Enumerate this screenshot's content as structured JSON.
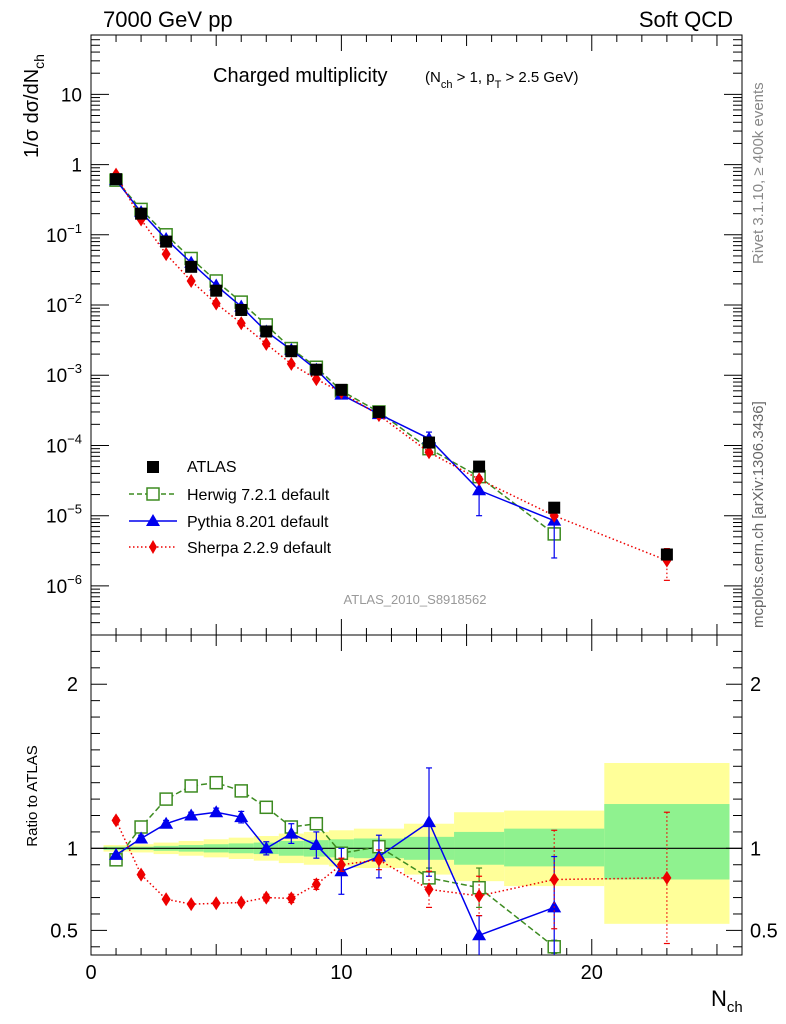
{
  "header": {
    "left": "7000 GeV pp",
    "right": "Soft QCD"
  },
  "side_labels": {
    "rivet": "Rivet 3.1.10, ≥ 400k events",
    "source": "mcplots.cern.ch [arXiv:1306.3436]"
  },
  "chart_data": [
    {
      "type": "scatter",
      "panel": "main",
      "title_main": "Charged multiplicity",
      "title_cut_parts": [
        "(N",
        "ch",
        " > 1, p",
        "T",
        " > 2.5 GeV)"
      ],
      "analysis_id": "ATLAS_2010_S8918562",
      "ylabel_parts": [
        "1/σ dσ/dN",
        "ch"
      ],
      "yscale": "log",
      "ylim": [
        2e-07,
        70
      ],
      "xlim": [
        0,
        26
      ],
      "y_tick_values": [
        1e-06,
        1e-05,
        0.0001,
        0.001,
        0.01,
        0.1,
        1,
        10
      ],
      "y_tick_labels": [
        {
          "base": "10",
          "exp": "−6"
        },
        {
          "base": "10",
          "exp": "−5"
        },
        {
          "base": "10",
          "exp": "−4"
        },
        {
          "base": "10",
          "exp": "−3"
        },
        {
          "base": "10",
          "exp": "−2"
        },
        {
          "base": "10",
          "exp": "−1"
        },
        {
          "base": "1",
          "exp": ""
        },
        {
          "base": "10",
          "exp": ""
        }
      ],
      "legend_position": "bottom-left",
      "series": [
        {
          "name": "ATLAS",
          "color": "#000000",
          "marker": "square",
          "x": [
            1,
            2,
            3,
            4,
            5,
            6,
            7,
            8,
            9,
            10,
            11.5,
            13.5,
            15.5,
            18.5,
            23
          ],
          "y": [
            0.62,
            0.2,
            0.08,
            0.035,
            0.016,
            0.0085,
            0.0042,
            0.0022,
            0.0012,
            0.00062,
            0.0003,
            0.00011,
            5e-05,
            1.3e-05,
            2.8e-06
          ]
        },
        {
          "name": "Herwig 7.2.1 default",
          "color": "#3d8b21",
          "marker": "open-square",
          "line": "dashed",
          "x": [
            1,
            2,
            3,
            4,
            5,
            6,
            7,
            8,
            9,
            10,
            11.5,
            13.5,
            15.5,
            18.5
          ],
          "y": [
            0.6,
            0.23,
            0.1,
            0.046,
            0.022,
            0.011,
            0.0052,
            0.0024,
            0.0013,
            0.0006,
            0.0003,
            9e-05,
            3.6e-05,
            5.5e-06
          ]
        },
        {
          "name": "Pythia 8.201 default",
          "color": "#0000ee",
          "marker": "triangle",
          "line": "solid",
          "x": [
            1,
            2,
            3,
            4,
            5,
            6,
            7,
            8,
            9,
            10,
            11.5,
            13.5,
            15.5,
            18.5
          ],
          "y": [
            0.6,
            0.21,
            0.087,
            0.04,
            0.019,
            0.0095,
            0.0042,
            0.0023,
            0.0012,
            0.00053,
            0.00028,
            0.000125,
            2.3e-05,
            8.5e-06
          ],
          "y_err": [
            0,
            0,
            0,
            0,
            0,
            0,
            0,
            0,
            0,
            0,
            0,
            3e-05,
            1.3e-05,
            6e-06
          ]
        },
        {
          "name": "Sherpa 2.2.9 default",
          "color": "#ee0000",
          "marker": "diamond",
          "line": "dotted",
          "x": [
            1,
            2,
            3,
            4,
            5,
            6,
            7,
            8,
            9,
            10,
            11.5,
            13.5,
            15.5,
            18.5,
            23
          ],
          "y": [
            0.72,
            0.165,
            0.053,
            0.022,
            0.0105,
            0.0055,
            0.0028,
            0.00145,
            0.00088,
            0.00057,
            0.00027,
            8e-05,
            3.3e-05,
            1e-05,
            2.3e-06
          ],
          "y_err": [
            0,
            0,
            0,
            0,
            0,
            0,
            0,
            0,
            0,
            0,
            0,
            0,
            0,
            0,
            1.1e-06
          ]
        }
      ]
    },
    {
      "type": "scatter",
      "panel": "ratio",
      "ylabel": "Ratio to ATLAS",
      "xlabel_parts": [
        "N",
        "ch"
      ],
      "xlim": [
        0,
        26
      ],
      "ylim": [
        0.35,
        2.3
      ],
      "x_ticks": [
        0,
        10,
        20
      ],
      "y_ticks": [
        0.5,
        1,
        2
      ],
      "reference_line": 1,
      "uncertainty_bands": [
        {
          "x0": 0.5,
          "x1": 1.5,
          "y_lo": 0.98,
          "y_hi": 1.02
        },
        {
          "x0": 1.5,
          "x1": 2.5,
          "y_lo": 0.975,
          "y_hi": 1.025
        },
        {
          "x0": 2.5,
          "x1": 3.5,
          "y_lo": 0.965,
          "y_hi": 1.035
        },
        {
          "x0": 3.5,
          "x1": 4.5,
          "y_lo": 0.955,
          "y_hi": 1.045
        },
        {
          "x0": 4.5,
          "x1": 5.5,
          "y_lo": 0.945,
          "y_hi": 1.055
        },
        {
          "x0": 5.5,
          "x1": 6.5,
          "y_lo": 0.935,
          "y_hi": 1.065
        },
        {
          "x0": 6.5,
          "x1": 7.5,
          "y_lo": 0.925,
          "y_hi": 1.075
        },
        {
          "x0": 7.5,
          "x1": 8.5,
          "y_lo": 0.91,
          "y_hi": 1.09
        },
        {
          "x0": 8.5,
          "x1": 9.5,
          "y_lo": 0.9,
          "y_hi": 1.1
        },
        {
          "x0": 9.5,
          "x1": 10.5,
          "y_lo": 0.89,
          "y_hi": 1.11
        },
        {
          "x0": 10.5,
          "x1": 12.5,
          "y_lo": 0.88,
          "y_hi": 1.12
        },
        {
          "x0": 12.5,
          "x1": 14.5,
          "y_lo": 0.84,
          "y_hi": 1.15
        },
        {
          "x0": 14.5,
          "x1": 16.5,
          "y_lo": 0.8,
          "y_hi": 1.22
        },
        {
          "x0": 16.5,
          "x1": 20.5,
          "y_lo": 0.77,
          "y_hi": 1.23
        },
        {
          "x0": 20.5,
          "x1": 25.5,
          "y_lo": 0.54,
          "y_hi": 1.52
        }
      ],
      "stat_bands": [
        {
          "x0": 0.5,
          "x1": 1.5,
          "y_lo": 0.99,
          "y_hi": 1.01
        },
        {
          "x0": 1.5,
          "x1": 2.5,
          "y_lo": 0.99,
          "y_hi": 1.01
        },
        {
          "x0": 2.5,
          "x1": 3.5,
          "y_lo": 0.985,
          "y_hi": 1.015
        },
        {
          "x0": 3.5,
          "x1": 4.5,
          "y_lo": 0.98,
          "y_hi": 1.02
        },
        {
          "x0": 4.5,
          "x1": 5.5,
          "y_lo": 0.975,
          "y_hi": 1.025
        },
        {
          "x0": 5.5,
          "x1": 6.5,
          "y_lo": 0.97,
          "y_hi": 1.03
        },
        {
          "x0": 6.5,
          "x1": 7.5,
          "y_lo": 0.965,
          "y_hi": 1.035
        },
        {
          "x0": 7.5,
          "x1": 8.5,
          "y_lo": 0.955,
          "y_hi": 1.045
        },
        {
          "x0": 8.5,
          "x1": 9.5,
          "y_lo": 0.95,
          "y_hi": 1.05
        },
        {
          "x0": 9.5,
          "x1": 10.5,
          "y_lo": 0.945,
          "y_hi": 1.055
        },
        {
          "x0": 10.5,
          "x1": 12.5,
          "y_lo": 0.94,
          "y_hi": 1.06
        },
        {
          "x0": 12.5,
          "x1": 14.5,
          "y_lo": 0.93,
          "y_hi": 1.07
        },
        {
          "x0": 14.5,
          "x1": 16.5,
          "y_lo": 0.9,
          "y_hi": 1.1
        },
        {
          "x0": 16.5,
          "x1": 20.5,
          "y_lo": 0.89,
          "y_hi": 1.12
        },
        {
          "x0": 20.5,
          "x1": 25.5,
          "y_lo": 0.81,
          "y_hi": 1.27
        }
      ],
      "series": [
        {
          "name": "Herwig 7.2.1 default",
          "color": "#3d8b21",
          "marker": "open-square",
          "line": "dashed",
          "x": [
            1,
            2,
            3,
            4,
            5,
            6,
            7,
            8,
            9,
            10,
            11.5,
            13.5,
            15.5,
            18.5
          ],
          "y": [
            0.93,
            1.13,
            1.3,
            1.38,
            1.4,
            1.35,
            1.25,
            1.13,
            1.15,
            0.97,
            1.01,
            0.82,
            0.76,
            0.4
          ],
          "y_err": [
            0,
            0,
            0,
            0,
            0,
            0,
            0,
            0,
            0,
            0,
            0.03,
            0.06,
            0.12,
            0.04
          ]
        },
        {
          "name": "Pythia 8.201 default",
          "color": "#0000ee",
          "marker": "triangle",
          "line": "solid",
          "x": [
            1,
            2,
            3,
            4,
            5,
            6,
            7,
            8,
            9,
            10,
            11.5,
            13.5,
            15.5,
            18.5
          ],
          "y": [
            0.96,
            1.06,
            1.15,
            1.2,
            1.22,
            1.19,
            1.0,
            1.09,
            1.02,
            0.86,
            0.95,
            1.16,
            0.47,
            0.64
          ],
          "y_err": [
            0,
            0.02,
            0.02,
            0.02,
            0.025,
            0.035,
            0.04,
            0.06,
            0.08,
            0.14,
            0.13,
            0.33,
            0.12,
            0.31
          ]
        },
        {
          "name": "Sherpa 2.2.9 default",
          "color": "#ee0000",
          "marker": "diamond",
          "line": "dotted",
          "x": [
            1,
            2,
            3,
            4,
            5,
            6,
            7,
            8,
            9,
            10,
            11.5,
            13.5,
            15.5,
            18.5,
            23
          ],
          "y": [
            1.17,
            0.84,
            0.69,
            0.66,
            0.665,
            0.67,
            0.7,
            0.695,
            0.78,
            0.9,
            0.93,
            0.75,
            0.71,
            0.81,
            0.82
          ],
          "y_err": [
            0.015,
            0.015,
            0.01,
            0.01,
            0.01,
            0.015,
            0.02,
            0.025,
            0.03,
            0.04,
            0.06,
            0.11,
            0.12,
            0.3,
            0.4
          ]
        }
      ]
    }
  ]
}
